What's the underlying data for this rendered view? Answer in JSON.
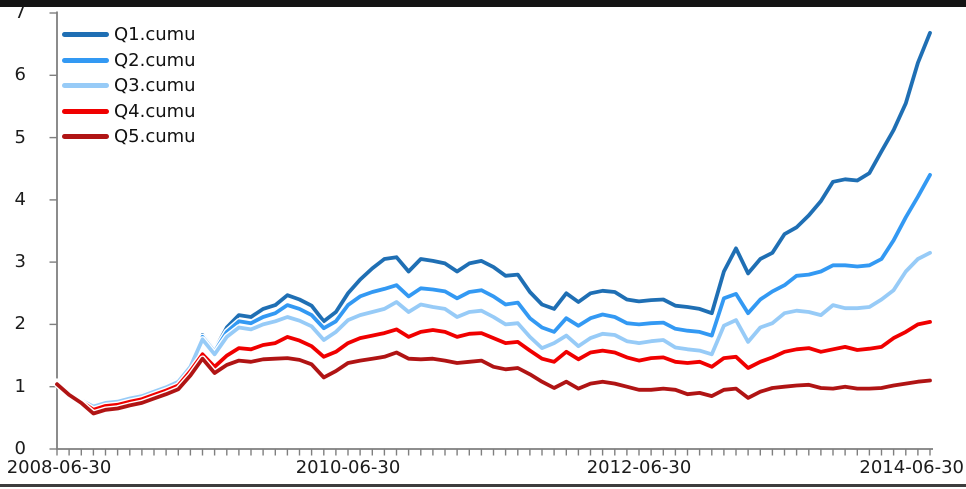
{
  "frame": {
    "top_bar_color": "#141414",
    "bottom_rule_color": "#3d3d3d",
    "background": "#ffffff"
  },
  "chart_data": {
    "type": "line",
    "title": "",
    "xlabel": "",
    "ylabel": "",
    "grid": false,
    "legend_position": "top-left",
    "x_axis": {
      "tick_labels": [
        "2008-06-30",
        "2010-06-30",
        "2012-06-30",
        "2014-06-30"
      ],
      "tick_month_indices": [
        0,
        24,
        48,
        72
      ],
      "minor_tick_unit": "month",
      "start_month": "2008-06",
      "end_month": "2014-06",
      "total_months": 72
    },
    "y_axis": {
      "min": 0,
      "max": 7,
      "tick_step": 1,
      "tick_labels": [
        "0",
        "1",
        "2",
        "3",
        "4",
        "5",
        "6",
        "7"
      ]
    },
    "axis_color": "#7f7f7f",
    "series": [
      {
        "name": "Q1.cumu",
        "color": "#1f6fb4",
        "values": [
          1.08,
          0.92,
          0.8,
          0.7,
          0.76,
          0.78,
          0.84,
          0.88,
          0.95,
          1.03,
          1.12,
          1.38,
          1.83,
          1.59,
          1.95,
          2.15,
          2.12,
          2.25,
          2.31,
          2.47,
          2.4,
          2.3,
          2.05,
          2.2,
          2.5,
          2.72,
          2.9,
          3.05,
          3.08,
          2.85,
          3.05,
          3.02,
          2.98,
          2.85,
          2.98,
          3.02,
          2.92,
          2.78,
          2.8,
          2.52,
          2.32,
          2.25,
          2.5,
          2.36,
          2.5,
          2.54,
          2.52,
          2.4,
          2.37,
          2.39,
          2.4,
          2.3,
          2.28,
          2.25,
          2.18,
          2.85,
          3.22,
          2.82,
          3.05,
          3.15,
          3.45,
          3.56,
          3.75,
          3.98,
          4.29,
          4.33,
          4.31,
          4.43,
          4.78,
          5.12,
          5.55,
          6.2,
          6.68
        ]
      },
      {
        "name": "Q2.cumu",
        "color": "#3399f3",
        "values": [
          1.07,
          0.91,
          0.79,
          0.69,
          0.75,
          0.77,
          0.83,
          0.87,
          0.94,
          1.01,
          1.1,
          1.35,
          1.8,
          1.56,
          1.88,
          2.05,
          2.02,
          2.12,
          2.18,
          2.31,
          2.25,
          2.15,
          1.94,
          2.05,
          2.31,
          2.45,
          2.52,
          2.57,
          2.63,
          2.45,
          2.58,
          2.56,
          2.53,
          2.42,
          2.52,
          2.55,
          2.45,
          2.32,
          2.35,
          2.1,
          1.95,
          1.88,
          2.1,
          1.98,
          2.1,
          2.16,
          2.12,
          2.02,
          2.0,
          2.02,
          2.03,
          1.93,
          1.9,
          1.88,
          1.82,
          2.42,
          2.49,
          2.18,
          2.4,
          2.53,
          2.63,
          2.78,
          2.8,
          2.85,
          2.95,
          2.95,
          2.93,
          2.95,
          3.05,
          3.35,
          3.72,
          4.05,
          4.4
        ]
      },
      {
        "name": "Q3.cumu",
        "color": "#97cbf7",
        "values": [
          1.06,
          0.9,
          0.78,
          0.68,
          0.74,
          0.76,
          0.81,
          0.85,
          0.92,
          0.99,
          1.08,
          1.32,
          1.76,
          1.52,
          1.8,
          1.95,
          1.92,
          2.0,
          2.05,
          2.12,
          2.06,
          1.97,
          1.75,
          1.88,
          2.07,
          2.15,
          2.2,
          2.25,
          2.36,
          2.2,
          2.32,
          2.28,
          2.25,
          2.12,
          2.2,
          2.22,
          2.12,
          2.0,
          2.02,
          1.8,
          1.62,
          1.7,
          1.82,
          1.65,
          1.78,
          1.85,
          1.83,
          1.73,
          1.7,
          1.73,
          1.75,
          1.63,
          1.6,
          1.58,
          1.52,
          1.98,
          2.07,
          1.72,
          1.95,
          2.02,
          2.18,
          2.22,
          2.2,
          2.15,
          2.31,
          2.26,
          2.26,
          2.28,
          2.4,
          2.55,
          2.85,
          3.05,
          3.15
        ]
      },
      {
        "name": "Q4.cumu",
        "color": "#f00000",
        "values": [
          1.05,
          0.89,
          0.76,
          0.63,
          0.69,
          0.71,
          0.76,
          0.8,
          0.87,
          0.94,
          1.02,
          1.25,
          1.52,
          1.32,
          1.5,
          1.62,
          1.6,
          1.67,
          1.7,
          1.8,
          1.74,
          1.65,
          1.48,
          1.56,
          1.7,
          1.78,
          1.82,
          1.86,
          1.92,
          1.8,
          1.88,
          1.91,
          1.88,
          1.8,
          1.85,
          1.86,
          1.78,
          1.7,
          1.72,
          1.58,
          1.45,
          1.4,
          1.56,
          1.44,
          1.55,
          1.58,
          1.55,
          1.47,
          1.42,
          1.46,
          1.47,
          1.4,
          1.38,
          1.4,
          1.32,
          1.46,
          1.48,
          1.3,
          1.4,
          1.47,
          1.56,
          1.6,
          1.62,
          1.56,
          1.6,
          1.64,
          1.59,
          1.61,
          1.64,
          1.78,
          1.88,
          2.0,
          2.04
        ]
      },
      {
        "name": "Q5.cumu",
        "color": "#b01414",
        "values": [
          1.04,
          0.87,
          0.74,
          0.57,
          0.63,
          0.65,
          0.7,
          0.74,
          0.81,
          0.88,
          0.96,
          1.18,
          1.45,
          1.22,
          1.35,
          1.42,
          1.4,
          1.44,
          1.45,
          1.46,
          1.43,
          1.36,
          1.15,
          1.25,
          1.38,
          1.42,
          1.45,
          1.48,
          1.55,
          1.45,
          1.44,
          1.45,
          1.42,
          1.38,
          1.4,
          1.42,
          1.32,
          1.28,
          1.3,
          1.2,
          1.08,
          0.98,
          1.08,
          0.97,
          1.05,
          1.08,
          1.05,
          1.0,
          0.95,
          0.95,
          0.97,
          0.95,
          0.88,
          0.9,
          0.85,
          0.95,
          0.97,
          0.82,
          0.92,
          0.98,
          1.0,
          1.02,
          1.03,
          0.98,
          0.97,
          1.0,
          0.97,
          0.97,
          0.98,
          1.02,
          1.05,
          1.08,
          1.1
        ]
      }
    ]
  }
}
